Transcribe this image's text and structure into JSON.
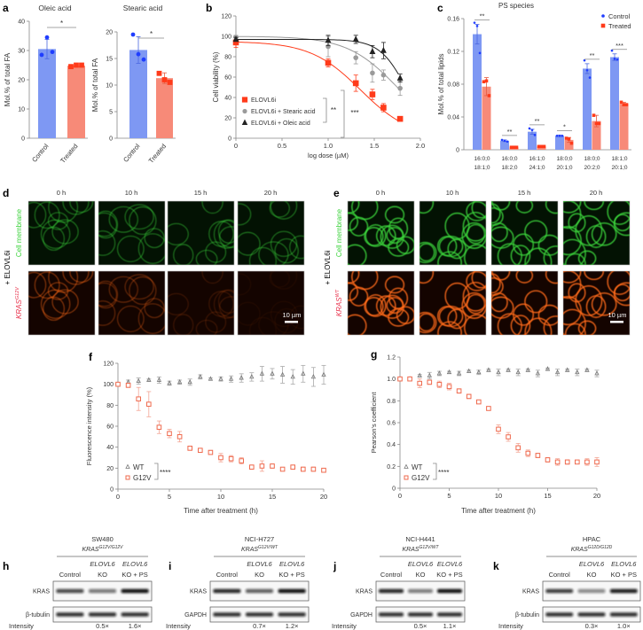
{
  "colors": {
    "control_bar": "#7e98f3",
    "control_dot": "#1f3dff",
    "treated_bar": "#f78a78",
    "treated_dot": "#ff3b1a",
    "stearic": "#9a9a9a",
    "oleic": "#222222",
    "g12v": "#ef6a4e",
    "wt": "#777777",
    "membrane": "#3bd23b",
    "kras": "#ff6a1a"
  },
  "panel_labels": [
    "a",
    "b",
    "c",
    "d",
    "e",
    "f",
    "g",
    "h",
    "i",
    "j",
    "k"
  ],
  "chart_data": [
    {
      "panel": "a",
      "type": "bar",
      "title": "Oleic acid",
      "ylabel": "Mol.% of total FA",
      "categories": [
        "Control",
        "Treated"
      ],
      "values": [
        30.5,
        24.8
      ],
      "errors": [
        3.3,
        0.4
      ],
      "points": [
        [
          28.5,
          34.5,
          29.5
        ],
        [
          24.5,
          25,
          25
        ]
      ],
      "ylim": [
        0,
        40
      ],
      "yticks": [
        0,
        10,
        20,
        30,
        40
      ],
      "significance": "*"
    },
    {
      "panel": "a",
      "type": "bar",
      "title": "Stearic acid",
      "ylabel": "Mol.% of total FA",
      "categories": [
        "Control",
        "Treated"
      ],
      "values": [
        16.6,
        11.3
      ],
      "errors": [
        2.5,
        1.0
      ],
      "points": [
        [
          19.5,
          15.8,
          14.8
        ],
        [
          12.2,
          11.0,
          10.5
        ]
      ],
      "ylim": [
        0,
        20
      ],
      "yticks": [
        0,
        5,
        10,
        15,
        20
      ],
      "significance": "*"
    },
    {
      "panel": "b",
      "type": "line",
      "xlabel": "log dose (µM)",
      "ylabel": "Cell viability (%)",
      "xlim": [
        0,
        2
      ],
      "ylim": [
        0,
        120
      ],
      "xticks": [
        "0",
        "0.5",
        "1.0",
        "1.5",
        "2.0"
      ],
      "yticks": [
        0,
        20,
        40,
        60,
        80,
        100,
        120
      ],
      "x": [
        0,
        1,
        1.3,
        1.48,
        1.6,
        1.78
      ],
      "series": [
        {
          "name": "ELOVL6i",
          "marker": "square",
          "values": [
            94,
            74,
            54,
            43,
            30,
            19
          ],
          "errors": [
            5,
            4,
            8,
            5,
            4,
            1
          ]
        },
        {
          "name": "ELOVL6i + Stearic acid",
          "marker": "circle",
          "values": [
            99,
            90,
            79,
            64,
            62,
            49
          ],
          "errors": [
            2,
            10,
            6,
            9,
            5,
            7
          ]
        },
        {
          "name": "ELOVL6i + Oleic acid",
          "marker": "triangle",
          "values": [
            97,
            96,
            97,
            85,
            86,
            59
          ],
          "errors": [
            2,
            5,
            4,
            6,
            8,
            4
          ]
        }
      ],
      "significance": [
        "**",
        "***"
      ]
    },
    {
      "panel": "c",
      "type": "bar",
      "title": "PS species",
      "ylabel": "Mol.% of total lipids",
      "ylim": [
        0,
        0.16
      ],
      "yticks": [
        "0",
        "0.04",
        "0.08",
        "0.12",
        "0.16"
      ],
      "categories": [
        [
          "16:0;0",
          "18:1;0"
        ],
        [
          "16:0;0",
          "18:2;0"
        ],
        [
          "16:1;0",
          "24:1;0"
        ],
        [
          "18:0;0",
          "20:1;0"
        ],
        [
          "18:0;0",
          "20:2;0"
        ],
        [
          "18:1;0",
          "20:1;0"
        ]
      ],
      "series": [
        {
          "name": "Control",
          "values": [
            0.141,
            0.011,
            0.022,
            0.017,
            0.099,
            0.113
          ],
          "errors": [
            0.012,
            0.001,
            0.003,
            0.001,
            0.006,
            0.004
          ],
          "points": [
            [
              0.155,
              0.151,
              0.118
            ],
            [
              0.012,
              0.011,
              0.01
            ],
            [
              0.026,
              0.024,
              0.018
            ],
            [
              0.017,
              0.017,
              0.017
            ],
            [
              0.109,
              0.097,
              0.088
            ],
            [
              0.121,
              0.111,
              0.11
            ]
          ]
        },
        {
          "name": "Treated",
          "values": [
            0.077,
            0.003,
            0.004,
            0.012,
            0.035,
            0.056
          ],
          "errors": [
            0.011,
            0.001,
            0.001,
            0.003,
            0.007,
            0.002
          ],
          "points": [
            [
              0.083,
              0.084,
              0.066
            ],
            [
              0.003,
              0.003,
              0.003
            ],
            [
              0.004,
              0.004,
              0.004
            ],
            [
              0.014,
              0.013,
              0.008
            ],
            [
              0.042,
              0.032,
              0.032
            ],
            [
              0.058,
              0.055,
              0.055
            ]
          ]
        }
      ],
      "significance": [
        "**",
        "**",
        "**",
        "*",
        "**",
        "***"
      ],
      "legend": "top-right"
    },
    {
      "panel": "f",
      "type": "scatter",
      "xlabel": "Time after treatment (h)",
      "ylabel": "Fluorescence intensity (%)",
      "xlim": [
        0,
        20
      ],
      "ylim": [
        0,
        120
      ],
      "xticks": [
        0,
        5,
        10,
        15,
        20
      ],
      "yticks": [
        0,
        20,
        40,
        60,
        80,
        100,
        120
      ],
      "x": [
        0,
        1,
        2,
        3,
        4,
        5,
        6,
        7,
        8,
        9,
        10,
        11,
        12,
        13,
        14,
        15,
        16,
        17,
        18,
        19,
        20
      ],
      "series": [
        {
          "name": "WT",
          "marker": "triangle",
          "values": [
            100,
            102,
            103,
            104,
            104,
            101,
            102,
            102,
            107,
            105,
            105,
            105,
            106,
            107,
            110,
            110,
            109,
            107,
            110,
            107,
            109
          ],
          "errors": [
            1,
            2,
            3,
            1,
            3,
            2,
            2,
            3,
            2,
            1,
            2,
            3,
            4,
            4,
            7,
            5,
            8,
            7,
            8,
            9,
            9
          ]
        },
        {
          "name": "G12V",
          "marker": "square",
          "values": [
            100,
            99,
            86,
            81,
            59,
            53,
            50,
            39,
            37,
            35,
            30,
            29,
            27,
            21,
            22,
            22,
            19,
            21,
            19,
            19,
            18
          ],
          "errors": [
            1,
            2,
            11,
            12,
            6,
            4,
            5,
            2,
            2,
            2,
            4,
            3,
            3,
            2,
            5,
            2,
            1,
            2,
            2,
            2,
            1
          ]
        }
      ],
      "significance": "****",
      "legend": "bottom-left"
    },
    {
      "panel": "g",
      "type": "scatter",
      "xlabel": "Time after treatment (h)",
      "ylabel": "Pearson's coefficient",
      "xlim": [
        0,
        20
      ],
      "ylim": [
        0,
        1.2
      ],
      "xticks": [
        0,
        5,
        10,
        15,
        20
      ],
      "yticks": [
        "0",
        "0.2",
        "0.4",
        "0.6",
        "0.8",
        "1.0",
        "1.2"
      ],
      "x": [
        0,
        1,
        2,
        3,
        4,
        5,
        6,
        7,
        8,
        9,
        10,
        11,
        12,
        13,
        14,
        15,
        16,
        17,
        18,
        19,
        20
      ],
      "series": [
        {
          "name": "WT",
          "marker": "triangle",
          "values": [
            1.0,
            1.0,
            1.03,
            1.03,
            1.05,
            1.06,
            1.05,
            1.07,
            1.06,
            1.08,
            1.06,
            1.08,
            1.06,
            1.08,
            1.05,
            1.09,
            1.06,
            1.08,
            1.06,
            1.08,
            1.05
          ],
          "errors": [
            0,
            0,
            0.01,
            0.03,
            0.02,
            0.01,
            0.02,
            0.01,
            0.02,
            0.01,
            0.03,
            0.01,
            0.03,
            0.01,
            0.03,
            0.01,
            0.03,
            0.01,
            0.03,
            0.01,
            0.03
          ]
        },
        {
          "name": "G12V",
          "marker": "square",
          "values": [
            1.0,
            1.0,
            0.96,
            0.97,
            0.95,
            0.93,
            0.89,
            0.84,
            0.79,
            0.73,
            0.54,
            0.47,
            0.37,
            0.32,
            0.3,
            0.26,
            0.24,
            0.24,
            0.24,
            0.24,
            0.24
          ],
          "errors": [
            0,
            0,
            0.04,
            0.02,
            0.03,
            0.03,
            0.02,
            0.02,
            0.01,
            0.01,
            0.04,
            0.04,
            0.04,
            0.03,
            0.02,
            0.02,
            0.03,
            0.02,
            0.01,
            0.03,
            0.04
          ]
        }
      ],
      "significance": "****",
      "legend": "bottom-left"
    }
  ],
  "microscopy": {
    "d": {
      "times": [
        "0 h",
        "10 h",
        "15 h",
        "20 h"
      ],
      "treatment": "+ ELOVL6i",
      "row1": "Cell membrane",
      "row2_gene": "KRAS",
      "row2_sup": "G12V",
      "kras_levels": [
        1,
        0.7,
        0.35,
        0.12
      ],
      "scale_bar": "10 µm"
    },
    "e": {
      "times": [
        "0 h",
        "10 h",
        "15 h",
        "20 h"
      ],
      "treatment": "+ ELOVL6i",
      "row1": "Cell membrane",
      "row2_gene": "KRAS",
      "row2_sup": "WT",
      "kras_levels": [
        1,
        1,
        1,
        1
      ],
      "scale_bar": "10 µm"
    }
  },
  "blots": [
    {
      "panel": "h",
      "cell_line": "SW480",
      "gene": "KRAS",
      "genotype": "G12V/G12V",
      "lanes": [
        "Control",
        [
          "ELOVL6",
          "KO"
        ],
        [
          "ELOVL6",
          "KO + PS"
        ]
      ],
      "rows": [
        "KRAS",
        "β-tubulin"
      ],
      "intensity_label": "Intensity",
      "intensity": [
        "",
        "0.5×",
        "1.6×"
      ]
    },
    {
      "panel": "i",
      "cell_line": "NCI-H727",
      "gene": "KRAS",
      "genotype": "G12V/WT",
      "lanes": [
        "Control",
        [
          "ELOVL6",
          "KO"
        ],
        [
          "ELOVL6",
          "KO + PS"
        ]
      ],
      "rows": [
        "KRAS",
        "GAPDH"
      ],
      "intensity_label": "Intensity",
      "intensity": [
        "",
        "0.7×",
        "1.2×"
      ]
    },
    {
      "panel": "j",
      "cell_line": "NCI-H441",
      "gene": "KRAS",
      "genotype": "G12V/WT",
      "lanes": [
        "Control",
        [
          "ELOVL6",
          "KO"
        ],
        [
          "ELOVL6",
          "KO + PS"
        ]
      ],
      "rows": [
        "KRAS",
        "GAPDH"
      ],
      "intensity_label": "Intensity",
      "intensity": [
        "",
        "0.5×",
        "1.1×"
      ]
    },
    {
      "panel": "k",
      "cell_line": "HPAC",
      "gene": "KRAS",
      "genotype": "G12D/G12D",
      "lanes": [
        "Control",
        [
          "ELOVL6",
          "KO"
        ],
        [
          "ELOVL6",
          "KO + PS"
        ]
      ],
      "rows": [
        "KRAS",
        "β-tubulin"
      ],
      "intensity_label": "Intensity",
      "intensity": [
        "",
        "0.3×",
        "1.0×"
      ]
    }
  ]
}
